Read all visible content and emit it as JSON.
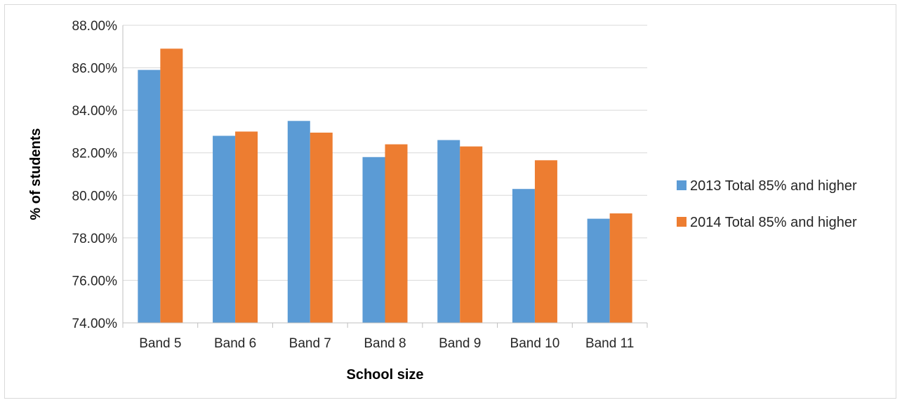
{
  "chart_data": {
    "type": "bar",
    "title": "",
    "xlabel": "School size",
    "ylabel": "% of students",
    "categories": [
      "Band 5",
      "Band 6",
      "Band 7",
      "Band 8",
      "Band 9",
      "Band 10",
      "Band 11"
    ],
    "series": [
      {
        "name": "2013 Total 85% and higher",
        "color": "#5b9bd5",
        "values": [
          85.9,
          82.8,
          83.5,
          81.8,
          82.6,
          80.3,
          78.9
        ]
      },
      {
        "name": "2014 Total 85% and higher",
        "color": "#ed7d31",
        "values": [
          86.9,
          83.0,
          82.95,
          82.4,
          82.3,
          81.65,
          79.15
        ]
      }
    ],
    "ylim": [
      74,
      88
    ],
    "yticks": [
      "74.00%",
      "76.00%",
      "78.00%",
      "80.00%",
      "82.00%",
      "84.00%",
      "86.00%",
      "88.00%"
    ],
    "ytick_values": [
      74,
      76,
      78,
      80,
      82,
      84,
      86,
      88
    ],
    "grid": true,
    "legend_position": "right"
  }
}
